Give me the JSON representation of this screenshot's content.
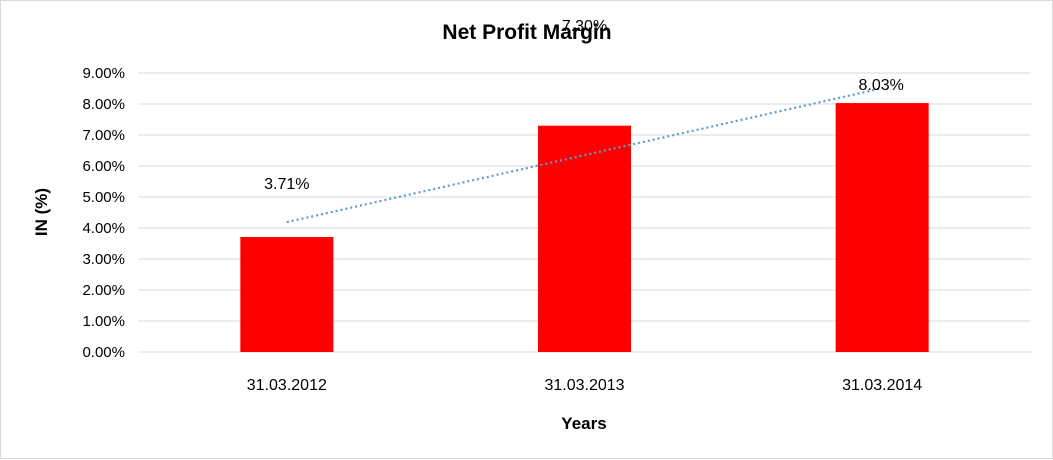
{
  "chart_data": {
    "type": "bar",
    "title": "Net Profit Margin",
    "xlabel": "Years",
    "ylabel": "IN (%)",
    "categories": [
      "31.03.2012",
      "31.03.2013",
      "31.03.2014"
    ],
    "values": [
      3.71,
      7.3,
      8.03
    ],
    "data_labels": [
      "3.71%",
      "7.30%",
      "8.03%"
    ],
    "ylim": [
      0,
      9
    ],
    "y_ticks": [
      0,
      1,
      2,
      3,
      4,
      5,
      6,
      7,
      8,
      9
    ],
    "y_tick_labels": [
      "0.00%",
      "1.00%",
      "2.00%",
      "3.00%",
      "4.00%",
      "5.00%",
      "6.00%",
      "7.00%",
      "8.00%",
      "9.00%"
    ],
    "grid": true,
    "legend": "none",
    "trendline": {
      "type": "linear",
      "style": "dotted",
      "start": 4.19,
      "end": 8.51
    },
    "colors": {
      "bar": "#ff0000",
      "trendline": "#5b9bd5",
      "grid": "#d9d9d9"
    }
  }
}
